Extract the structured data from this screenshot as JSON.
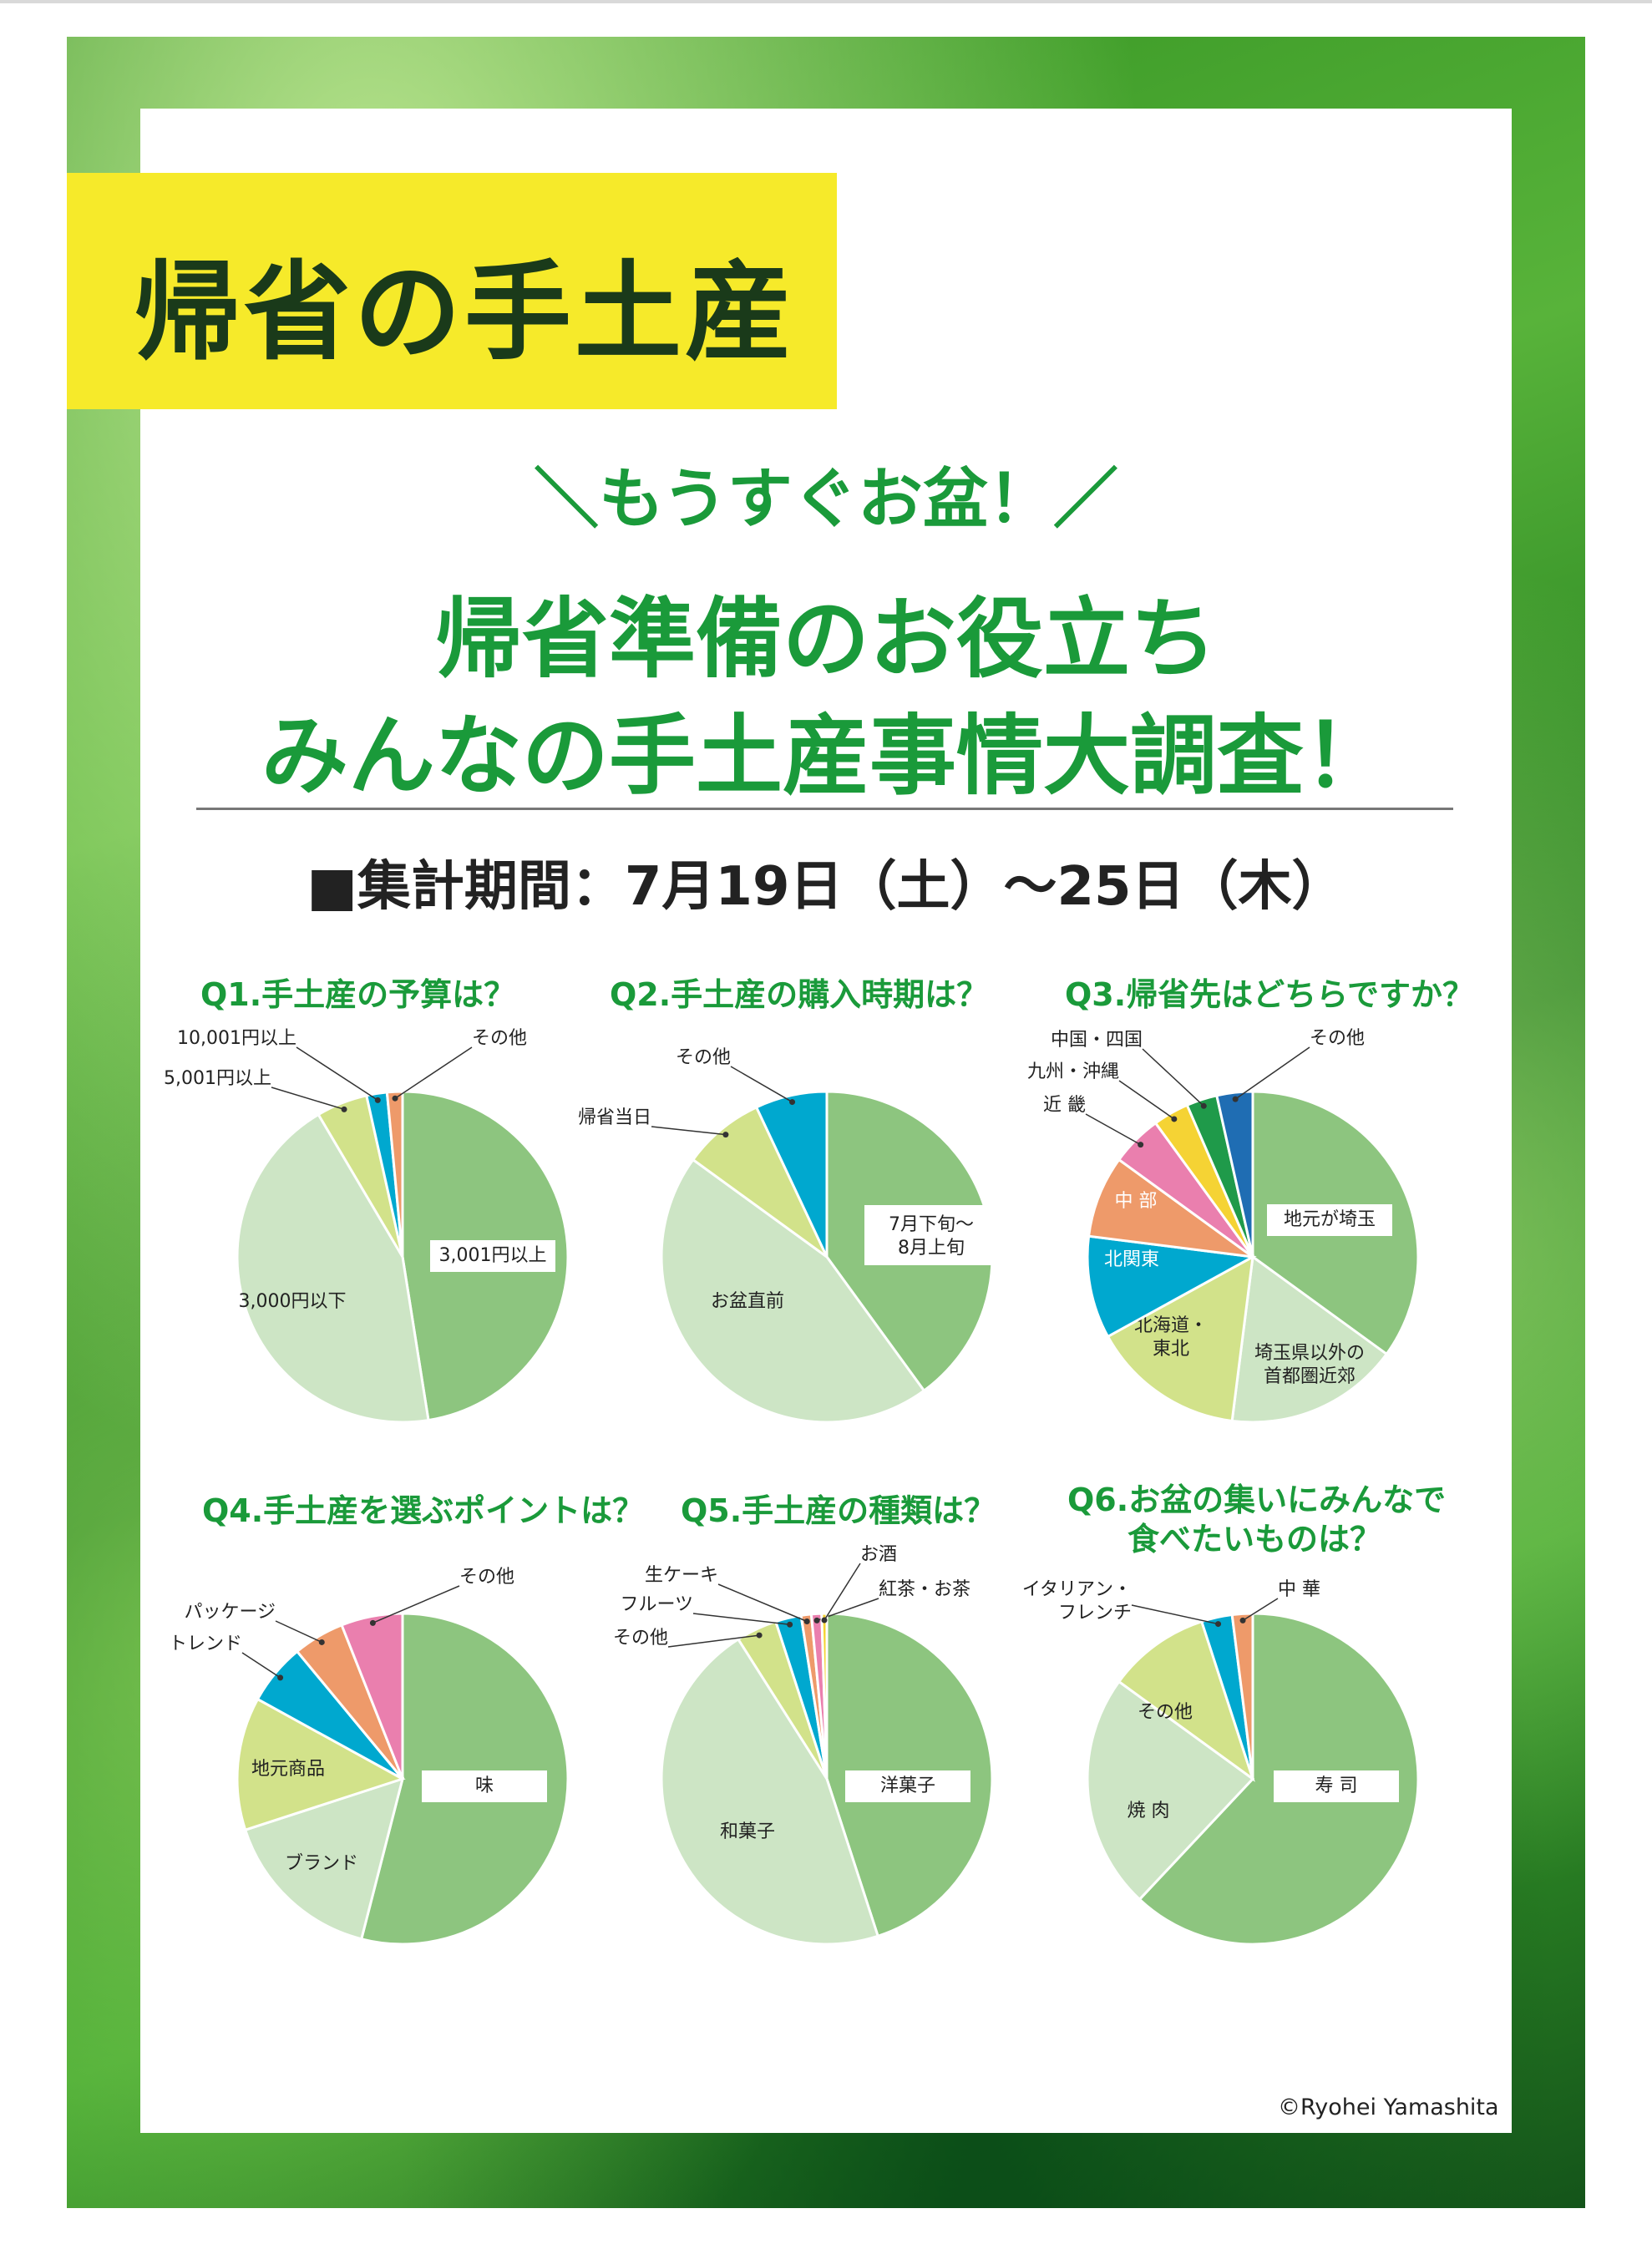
{
  "title": "帰省の手土産",
  "kicker": "＼もうすぐお盆！／",
  "headline": [
    "帰省準備のお役立ち",
    "みんなの手土産事情大調査！"
  ],
  "period": "■集計期間：7月19日（土）〜25日（木）",
  "credit": "©Ryohei Yamashita",
  "colors": {
    "green": "#8dc57f",
    "light_green": "#cde5c5",
    "yellow_green": "#d2e28a",
    "cyan": "#00a8cf",
    "orange": "#ee9a6a",
    "pink": "#ea7fae",
    "yellow": "#f5d334",
    "dark_green": "#1f9a4a",
    "blue": "#1f6db3"
  },
  "chart_data": [
    {
      "type": "pie",
      "title": "Q1.手土産の予算は？",
      "categories": [
        "3,001円以上",
        "3,000円以下",
        "5,001円以上",
        "10,001円以上",
        "その他"
      ],
      "values": [
        47.5,
        44,
        5,
        2,
        1.5
      ],
      "colors": [
        "#8dc57f",
        "#cde5c5",
        "#d2e28a",
        "#00a8cf",
        "#ee9a6a"
      ]
    },
    {
      "type": "pie",
      "title": "Q2.手土産の購入時期は？",
      "categories": [
        "7月下旬〜8月上旬",
        "お盆直前",
        "帰省当日",
        "その他"
      ],
      "values": [
        40,
        45,
        8,
        7
      ],
      "colors": [
        "#8dc57f",
        "#cde5c5",
        "#d2e28a",
        "#00a8cf"
      ]
    },
    {
      "type": "pie",
      "title": "Q3.帰省先はどちらですか？",
      "categories": [
        "地元が埼玉",
        "埼玉県以外の首都圏近郊",
        "北海道・東北",
        "北関東",
        "中 部",
        "近 畿",
        "九州・沖縄",
        "中国・四国",
        "その他"
      ],
      "values": [
        35,
        17,
        15,
        10,
        8,
        5,
        3.5,
        3,
        3.5
      ],
      "colors": [
        "#8dc57f",
        "#cde5c5",
        "#d2e28a",
        "#00a8cf",
        "#ee9a6a",
        "#ea7fae",
        "#f5d334",
        "#1f9a4a",
        "#1f6db3"
      ]
    },
    {
      "type": "pie",
      "title": "Q4.手土産を選ぶポイントは？",
      "categories": [
        "味",
        "ブランド",
        "地元商品",
        "トレンド",
        "パッケージ",
        "その他"
      ],
      "values": [
        54,
        16,
        13,
        6,
        5,
        6
      ],
      "colors": [
        "#8dc57f",
        "#cde5c5",
        "#d2e28a",
        "#00a8cf",
        "#ee9a6a",
        "#ea7fae"
      ]
    },
    {
      "type": "pie",
      "title": "Q5.手土産の種類は？",
      "categories": [
        "洋菓子",
        "和菓子",
        "その他",
        "フルーツ",
        "生ケーキ",
        "紅茶・お茶",
        "お酒"
      ],
      "values": [
        45,
        46,
        4,
        2.5,
        1,
        1,
        0.5
      ],
      "colors": [
        "#8dc57f",
        "#cde5c5",
        "#d2e28a",
        "#00a8cf",
        "#ee9a6a",
        "#ea7fae",
        "#f5d334"
      ]
    },
    {
      "type": "pie",
      "title": "Q6.お盆の集いにみんなで食べたいものは？",
      "title_lines": [
        "Q6.お盆の集いにみんなで",
        "食べたいものは？"
      ],
      "categories": [
        "寿 司",
        "焼 肉",
        "その他",
        "イタリアン・フレンチ",
        "中 華"
      ],
      "values": [
        62,
        23,
        10,
        3,
        2
      ],
      "colors": [
        "#8dc57f",
        "#cde5c5",
        "#d2e28a",
        "#00a8cf",
        "#ee9a6a"
      ]
    }
  ]
}
